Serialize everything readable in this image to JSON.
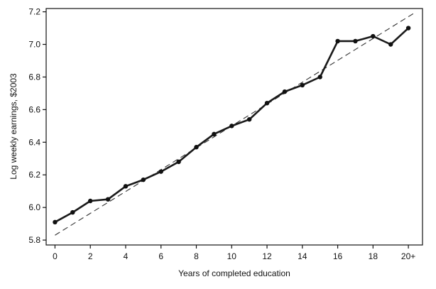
{
  "chart_data": {
    "type": "line",
    "title": "",
    "xlabel": "Years of completed education",
    "ylabel": "Log weekly earnings, $2003",
    "x_ticks": [
      "0",
      "2",
      "4",
      "6",
      "8",
      "10",
      "12",
      "14",
      "16",
      "18",
      "20+"
    ],
    "x_tick_values": [
      0,
      2,
      4,
      6,
      8,
      10,
      12,
      14,
      16,
      18,
      20
    ],
    "y_ticks": [
      "5.8",
      "6.0",
      "6.2",
      "6.4",
      "6.6",
      "6.8",
      "7.0",
      "7.2"
    ],
    "y_tick_values": [
      5.8,
      6.0,
      6.2,
      6.4,
      6.6,
      6.8,
      7.0,
      7.2
    ],
    "xlim": [
      -0.5,
      20.8
    ],
    "ylim": [
      5.77,
      7.22
    ],
    "grid": false,
    "series": [
      {
        "x": [
          0,
          1,
          2,
          3,
          4,
          5,
          6,
          7,
          8,
          9,
          10,
          11,
          12,
          13,
          14,
          15,
          16,
          17,
          18,
          19,
          20
        ],
        "y": [
          5.91,
          5.97,
          6.04,
          6.05,
          6.13,
          6.17,
          6.22,
          6.28,
          6.37,
          6.45,
          6.5,
          6.54,
          6.64,
          6.71,
          6.75,
          6.8,
          7.02,
          7.02,
          7.05,
          7.0,
          7.1
        ],
        "style": "solid-with-markers"
      },
      {
        "x": [
          0,
          20.3
        ],
        "y": [
          5.83,
          7.19
        ],
        "style": "dashed-linear-fit"
      }
    ]
  }
}
